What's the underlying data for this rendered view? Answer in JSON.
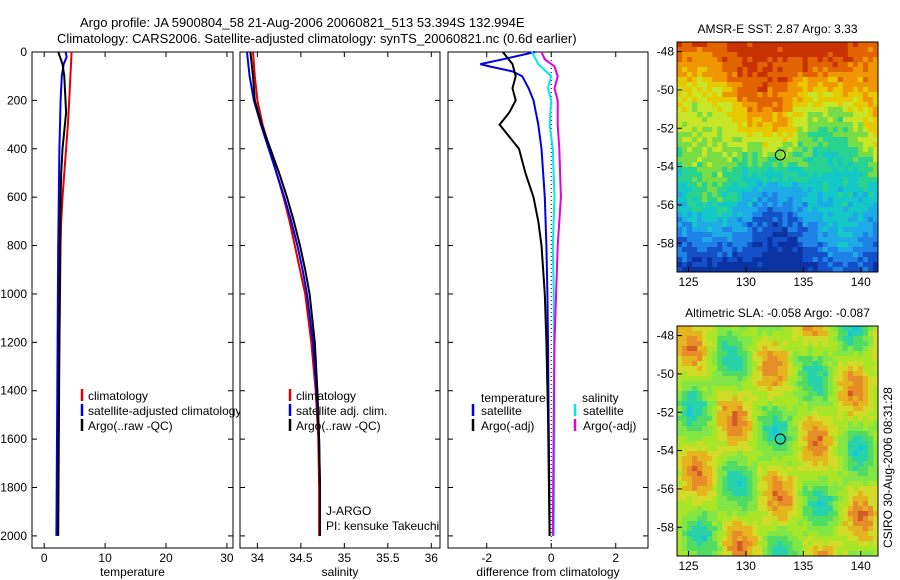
{
  "header": {
    "line1": "Argo profile: JA 5900804_58 21-Aug-2006 20060821_513 53.394S 132.994E",
    "line2": "Climatology: CARS2006. Satellite-adjusted climatology: synTS_20060821.nc (0.6d earlier)"
  },
  "footer": {
    "stamp": "CSIRO 30-Aug-2006 08:31:28"
  },
  "colors": {
    "red": "#e00000",
    "blue": "#0000e0",
    "black": "#000000",
    "cyan": "#00e8e8",
    "magenta": "#e000e0"
  },
  "chart_data": [
    {
      "type": "line",
      "name": "temperature-profile",
      "xlabel": "temperature",
      "ylabel": "",
      "xlim": [
        -2,
        31
      ],
      "ylim": [
        2050,
        0
      ],
      "xticks": [
        0,
        10,
        20,
        30
      ],
      "yticks": [
        0,
        200,
        400,
        600,
        800,
        1000,
        1200,
        1400,
        1600,
        1800,
        2000
      ],
      "legend": [
        "climatology",
        "satellite-adjusted climatology",
        "Argo(..raw -QC)"
      ],
      "series": [
        {
          "name": "climatology",
          "color": "#e00000",
          "y": [
            0,
            50,
            100,
            150,
            200,
            300,
            400,
            500,
            600,
            700,
            800,
            1000,
            1200,
            1400,
            1600,
            1800,
            2000
          ],
          "x": [
            4.5,
            4.4,
            4.3,
            4.2,
            4.1,
            3.9,
            3.6,
            3.3,
            3.0,
            2.8,
            2.7,
            2.6,
            2.5,
            2.4,
            2.35,
            2.3,
            2.25
          ]
        },
        {
          "name": "satellite-adjusted climatology",
          "color": "#0000e0",
          "y": [
            0,
            20,
            50,
            100,
            150,
            200,
            300,
            400,
            500,
            600,
            800,
            1000,
            1200,
            1400,
            1600,
            1800,
            2000
          ],
          "x": [
            3.5,
            3.7,
            3.2,
            2.9,
            2.8,
            2.7,
            2.6,
            2.5,
            2.45,
            2.4,
            2.3,
            2.25,
            2.2,
            2.15,
            2.1,
            2.05,
            2.0
          ]
        },
        {
          "name": "Argo(..raw -QC)",
          "color": "#000000",
          "y": [
            0,
            20,
            50,
            100,
            150,
            200,
            250,
            300,
            400,
            500,
            600,
            800,
            1000,
            1200,
            1400,
            1600,
            1800,
            2000
          ],
          "x": [
            2.3,
            2.6,
            3.0,
            3.3,
            3.4,
            3.5,
            3.6,
            3.4,
            3.0,
            2.8,
            2.7,
            2.6,
            2.55,
            2.5,
            2.45,
            2.4,
            2.35,
            2.3
          ]
        }
      ]
    },
    {
      "type": "line",
      "name": "salinity-profile",
      "xlabel": "salinity",
      "xlim": [
        33.8,
        36.1
      ],
      "ylim": [
        2050,
        0
      ],
      "xticks": [
        34,
        34.5,
        35,
        35.5,
        36
      ],
      "xticklabels": [
        "34",
        "34.5",
        "35",
        "35.5",
        "36"
      ],
      "legend": [
        "climatology",
        "satellite adj. clim.",
        "Argo(..raw -QC)"
      ],
      "annotations": [
        "J-ARGO",
        "PI: kensuke Takeuchi"
      ],
      "series": [
        {
          "name": "climatology",
          "color": "#e00000",
          "y": [
            0,
            100,
            200,
            300,
            400,
            500,
            600,
            700,
            800,
            900,
            1000,
            1200,
            1400,
            1600,
            1800,
            2000
          ],
          "x": [
            33.95,
            33.97,
            34.0,
            34.06,
            34.14,
            34.22,
            34.3,
            34.37,
            34.43,
            34.49,
            34.55,
            34.62,
            34.67,
            34.7,
            34.71,
            34.71
          ]
        },
        {
          "name": "satellite adj. clim.",
          "color": "#0000e0",
          "y": [
            0,
            100,
            200,
            300,
            400,
            500,
            600,
            700,
            800,
            900,
            1000,
            1200,
            1400,
            1600,
            1800,
            2000
          ],
          "x": [
            33.88,
            33.91,
            33.96,
            34.04,
            34.13,
            34.22,
            34.31,
            34.39,
            34.46,
            34.52,
            34.57,
            34.64,
            34.68,
            34.71,
            34.72,
            34.72
          ]
        },
        {
          "name": "Argo(..raw -QC)",
          "color": "#000000",
          "y": [
            0,
            100,
            200,
            300,
            400,
            500,
            600,
            700,
            800,
            900,
            1000,
            1200,
            1400,
            1600,
            1800,
            2000
          ],
          "x": [
            33.92,
            33.95,
            33.97,
            34.05,
            34.15,
            34.25,
            34.34,
            34.42,
            34.49,
            34.55,
            34.6,
            34.66,
            34.69,
            34.71,
            34.72,
            34.72
          ]
        }
      ]
    },
    {
      "type": "line",
      "name": "difference-profile",
      "xlabel": "difference from climatology",
      "xlim": [
        -3.2,
        3.0
      ],
      "ylim": [
        2050,
        0
      ],
      "xticks": [
        -2,
        0,
        2
      ],
      "legend_left_title": "temperature",
      "legend_right_title": "salinity",
      "legend": [
        "satellite",
        "Argo(-adj)",
        "satellite",
        "Argo(-adj)"
      ],
      "series": [
        {
          "name": "temperature satellite",
          "color": "#0000e0",
          "y": [
            0,
            30,
            50,
            60,
            80,
            100,
            150,
            200,
            300,
            400,
            600,
            800,
            1000,
            1200,
            1500,
            1800,
            2000
          ],
          "x": [
            -0.5,
            -1.5,
            -2.2,
            -1.9,
            -1.2,
            -0.9,
            -0.7,
            -0.55,
            -0.4,
            -0.3,
            -0.2,
            -0.15,
            -0.12,
            -0.1,
            -0.08,
            -0.06,
            -0.05
          ]
        },
        {
          "name": "temperature Argo(-adj)",
          "color": "#000000",
          "y": [
            0,
            50,
            100,
            150,
            200,
            250,
            300,
            350,
            400,
            500,
            600,
            700,
            800,
            1000,
            1200,
            1500,
            2000
          ],
          "x": [
            -1.5,
            -1.2,
            -1.1,
            -1.2,
            -1.1,
            -1.3,
            -1.6,
            -1.3,
            -1.0,
            -0.8,
            -0.55,
            -0.4,
            -0.3,
            -0.2,
            -0.15,
            -0.1,
            -0.05
          ]
        },
        {
          "name": "salinity satellite",
          "color": "#00e8e8",
          "y": [
            0,
            50,
            100,
            150,
            200,
            300,
            400,
            600,
            800,
            1000,
            1500,
            2000
          ],
          "x": [
            -0.6,
            -0.4,
            0.0,
            -0.1,
            0.0,
            -0.05,
            0.05,
            0.1,
            0.05,
            0.08,
            0.1,
            0.08
          ]
        },
        {
          "name": "salinity Argo(-adj)",
          "color": "#e000e0",
          "y": [
            0,
            30,
            60,
            100,
            150,
            200,
            300,
            400,
            600,
            700,
            800,
            1000,
            1200,
            1500,
            2000
          ],
          "x": [
            -0.3,
            -0.2,
            0.1,
            0.2,
            0.1,
            0.2,
            0.2,
            0.25,
            0.3,
            0.25,
            0.2,
            0.15,
            0.1,
            0.08,
            0.05
          ]
        }
      ]
    },
    {
      "type": "heatmap",
      "name": "amsr-sst-map",
      "title": "AMSR-E SST: 2.87 Argo: 3.33",
      "xlim": [
        124,
        141.5
      ],
      "ylim": [
        -59.5,
        -47.5
      ],
      "xticks": [
        125,
        130,
        135,
        140
      ],
      "yticks": [
        -48,
        -50,
        -52,
        -54,
        -56,
        -58
      ],
      "marker": {
        "lon": 132.994,
        "lat": -53.394
      }
    },
    {
      "type": "heatmap",
      "name": "altimetric-sla-map",
      "title": "Altimetric SLA: -0.058 Argo: -0.087",
      "xlim": [
        124,
        141.5
      ],
      "ylim": [
        -59.5,
        -47.5
      ],
      "xticks": [
        125,
        130,
        135,
        140
      ],
      "yticks": [
        -48,
        -50,
        -52,
        -54,
        -56,
        -58
      ],
      "marker": {
        "lon": 132.994,
        "lat": -53.394
      }
    }
  ]
}
